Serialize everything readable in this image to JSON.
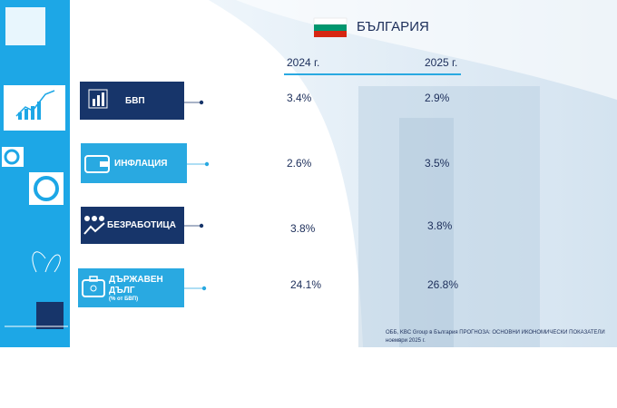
{
  "header": {
    "country": "БЪЛГАРИЯ"
  },
  "columns": [
    "2024 г.",
    "2025 г."
  ],
  "rows": [
    {
      "label": "БВП",
      "values": [
        "3.4%",
        "2.9%"
      ]
    },
    {
      "label": "ИНФЛАЦИЯ",
      "values": [
        "2.6%",
        "3.5%"
      ]
    },
    {
      "label": "БЕЗРАБОТИЦА",
      "values": [
        "3.8%",
        "3.8%"
      ]
    },
    {
      "label": "ДЪРЖАВЕН ДЪЛГ",
      "sublabel": "(% от БВП)",
      "values": [
        "24.1%",
        "26.8%"
      ]
    }
  ],
  "footer": {
    "source": "ОББ, KBC Group в България ПРОГНОЗА: ОСНОВНИ ИКОНОМИЧЕСКИ ПОКАЗАТЕЛИ",
    "date": "ноември 2025 г."
  }
}
